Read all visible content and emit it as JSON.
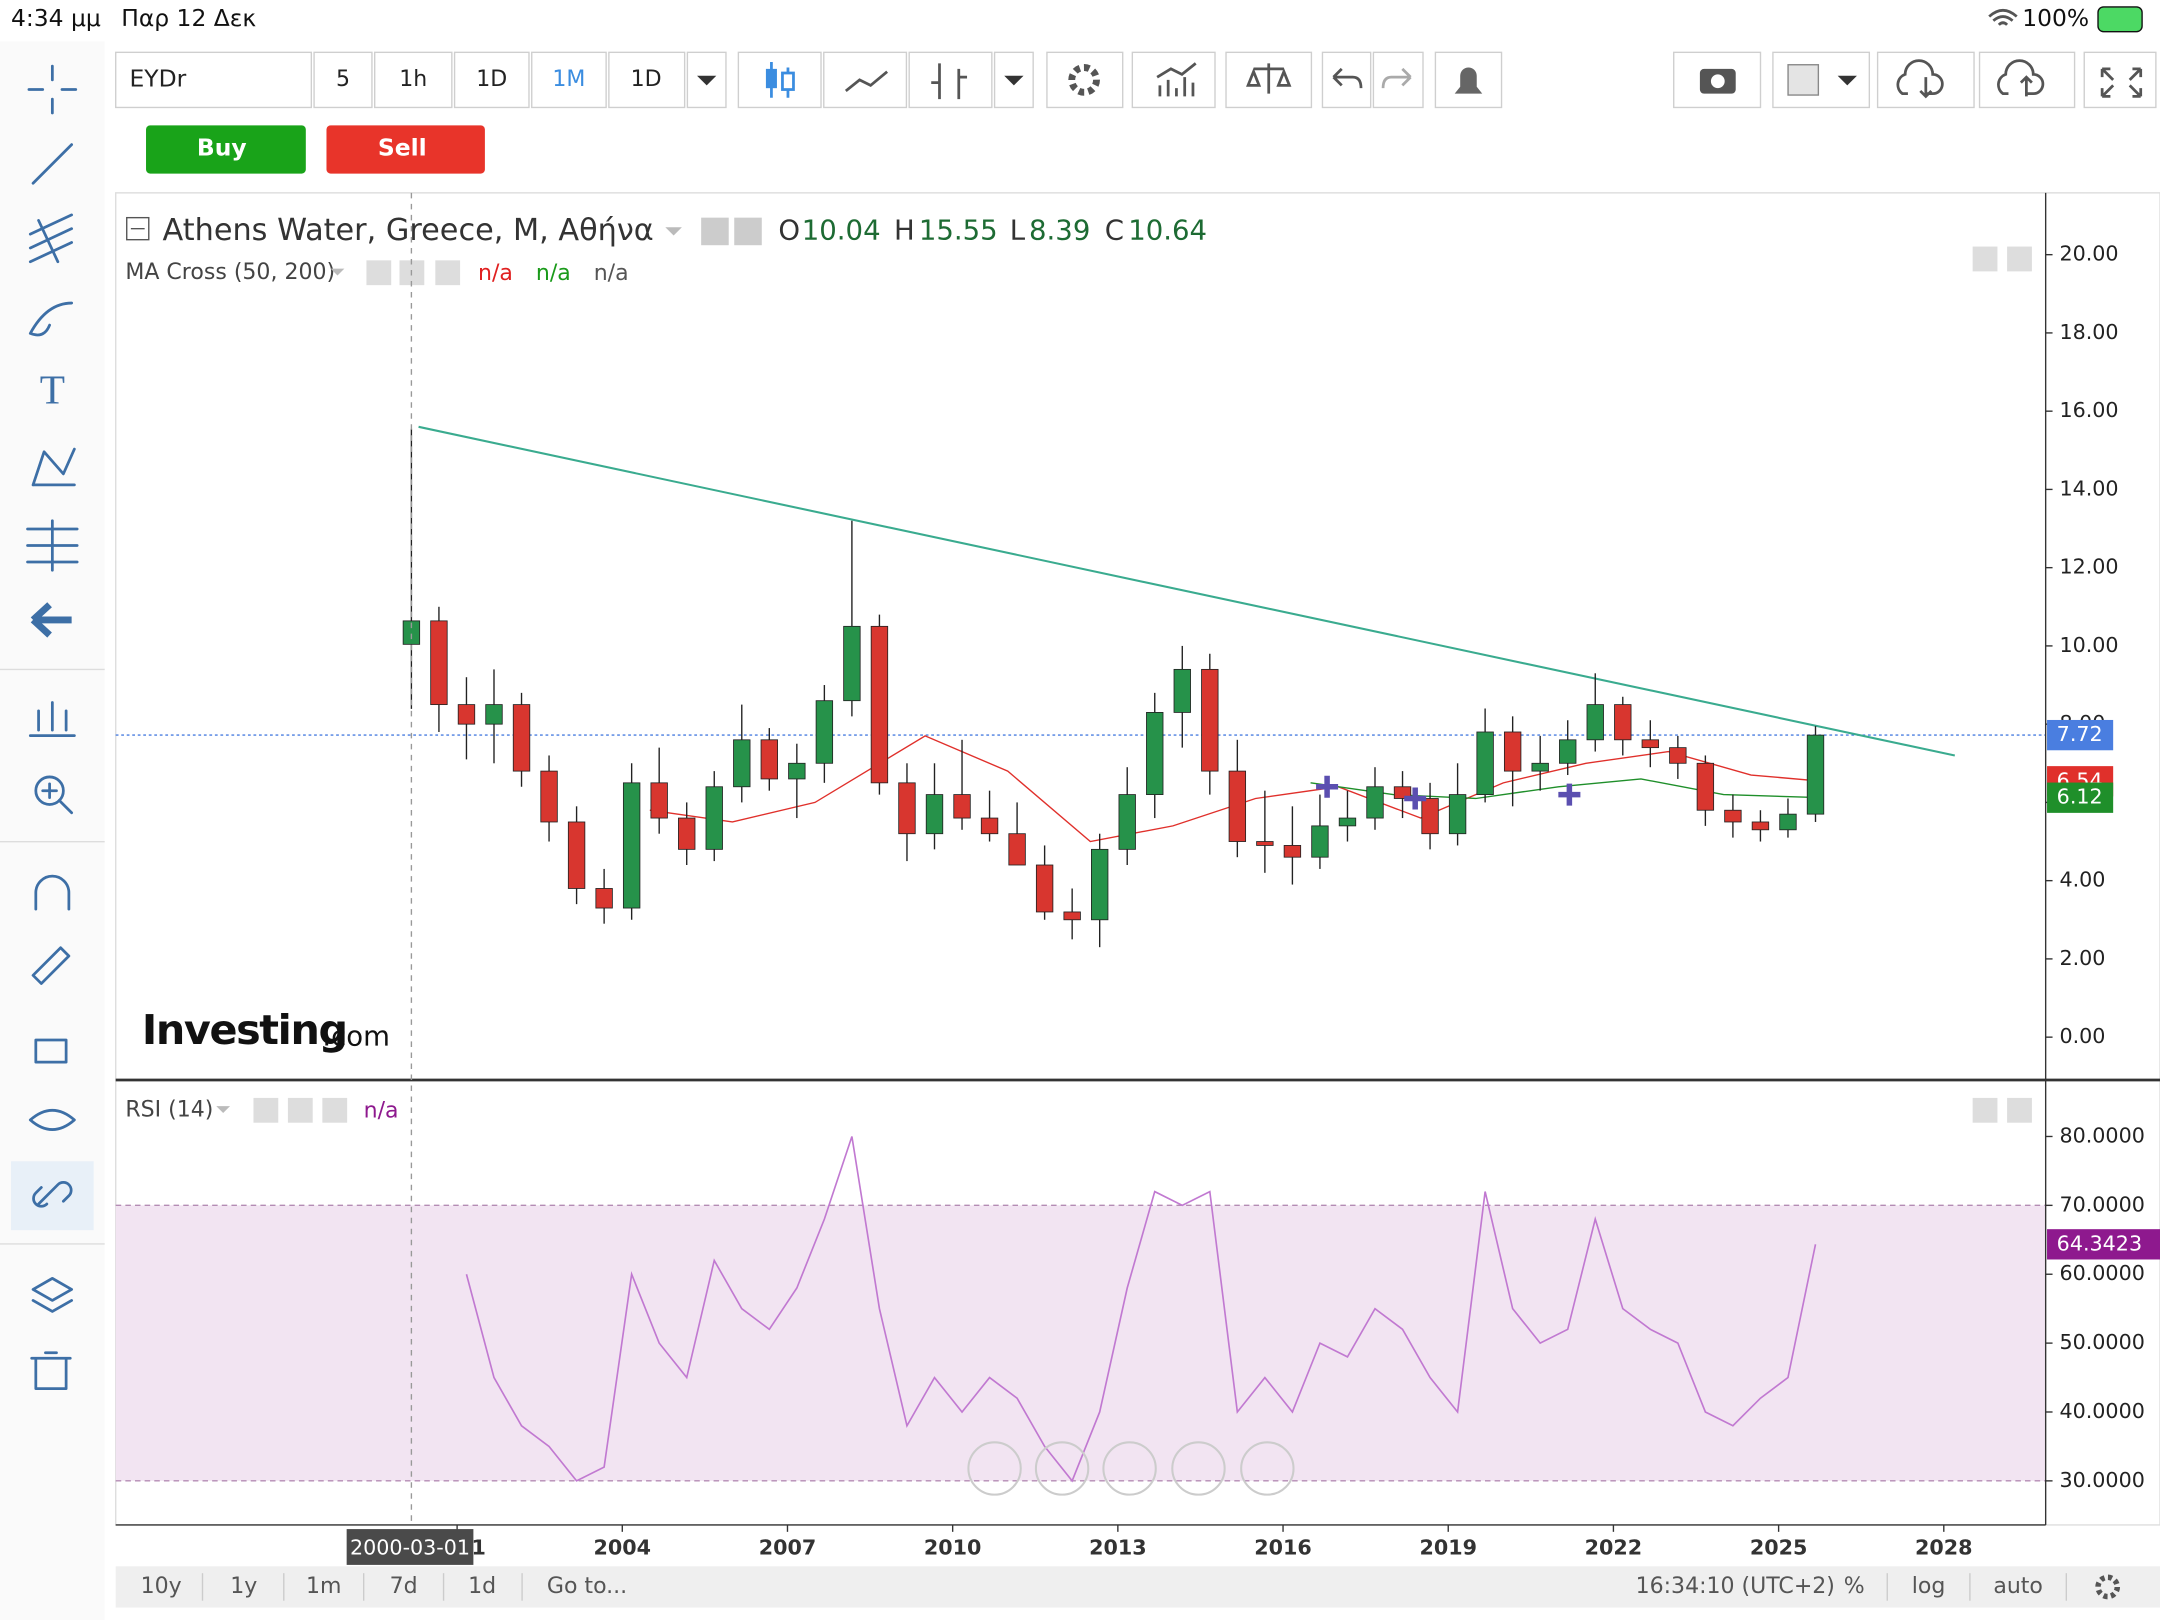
{
  "status_bar": {
    "time": "4:34 μμ",
    "date": "Παρ 12 Δεκ",
    "battery": "100%"
  },
  "toolbar": {
    "symbol": "EYDr",
    "intervals": [
      "5",
      "1h",
      "1D",
      "1M",
      "1D"
    ],
    "buy": "Buy",
    "sell": "Sell"
  },
  "chart_data": [
    {
      "type": "candlestick",
      "title": "Athens Water, Greece, M, Αθήνα",
      "legend_keys": [
        "O",
        "H",
        "L",
        "C"
      ],
      "x": [
        2000.17,
        2000.67,
        2001.17,
        2001.67,
        2002.17,
        2002.67,
        2003.17,
        2003.67,
        2004.17,
        2004.67,
        2005.17,
        2005.67,
        2006.17,
        2006.67,
        2007.17,
        2007.67,
        2008.17,
        2008.67,
        2009.17,
        2009.67,
        2010.17,
        2010.67,
        2011.17,
        2011.67,
        2012.17,
        2012.67,
        2013.17,
        2013.67,
        2014.17,
        2014.67,
        2015.17,
        2015.67,
        2016.17,
        2016.67,
        2017.17,
        2017.67,
        2018.17,
        2018.67,
        2019.17,
        2019.67,
        2020.17,
        2020.67,
        2021.17,
        2021.67,
        2022.17,
        2022.67,
        2023.17,
        2023.67,
        2024.17,
        2024.67,
        2025.17,
        2025.67
      ],
      "open": [
        10.04,
        10.64,
        8.5,
        8.0,
        8.5,
        6.8,
        5.5,
        3.8,
        3.3,
        6.5,
        5.6,
        4.8,
        6.4,
        7.6,
        6.6,
        7.0,
        8.6,
        10.5,
        6.5,
        5.2,
        6.2,
        5.6,
        5.2,
        4.4,
        3.2,
        3.0,
        4.8,
        6.2,
        8.3,
        9.4,
        6.8,
        5.0,
        4.9,
        4.6,
        5.4,
        5.6,
        6.4,
        6.1,
        5.2,
        6.2,
        7.8,
        6.8,
        7.0,
        7.6,
        8.5,
        7.6,
        7.4,
        7.0,
        5.8,
        5.5,
        5.3,
        5.7
      ],
      "high": [
        15.55,
        11.0,
        9.2,
        9.4,
        8.8,
        7.2,
        5.9,
        4.3,
        7.0,
        7.4,
        6.0,
        6.8,
        8.5,
        7.9,
        7.5,
        9.0,
        13.2,
        10.8,
        7.0,
        7.0,
        7.6,
        6.3,
        6.0,
        4.9,
        3.8,
        5.2,
        6.9,
        8.8,
        10.0,
        9.8,
        7.6,
        6.3,
        5.9,
        6.2,
        6.3,
        6.9,
        6.8,
        6.5,
        7.0,
        8.4,
        8.2,
        7.7,
        8.1,
        9.3,
        8.7,
        8.1,
        7.7,
        7.2,
        6.2,
        5.8,
        6.1,
        7.95
      ],
      "low": [
        8.39,
        7.8,
        7.1,
        7.0,
        6.4,
        5.0,
        3.4,
        2.9,
        3.0,
        5.2,
        4.4,
        4.5,
        6.0,
        6.3,
        5.6,
        6.5,
        8.2,
        6.2,
        4.5,
        4.8,
        5.3,
        5.0,
        4.4,
        3.0,
        2.5,
        2.3,
        4.4,
        5.6,
        7.4,
        6.2,
        4.6,
        4.2,
        3.9,
        4.3,
        5.0,
        5.3,
        5.6,
        4.8,
        4.9,
        6.0,
        5.9,
        6.3,
        6.7,
        7.3,
        7.2,
        6.9,
        6.6,
        5.4,
        5.1,
        5.0,
        5.1,
        5.5
      ],
      "close": [
        10.64,
        8.5,
        8.0,
        8.5,
        6.8,
        5.5,
        3.8,
        3.3,
        6.5,
        5.6,
        4.8,
        6.4,
        7.6,
        6.6,
        7.0,
        8.6,
        10.5,
        6.5,
        5.2,
        6.2,
        5.6,
        5.2,
        4.4,
        3.2,
        3.0,
        4.8,
        6.2,
        8.3,
        9.4,
        6.8,
        5.0,
        4.9,
        4.6,
        5.4,
        5.6,
        6.4,
        6.1,
        5.2,
        6.2,
        7.8,
        6.8,
        7.0,
        7.6,
        8.5,
        7.6,
        7.4,
        7.0,
        5.8,
        5.5,
        5.3,
        5.7,
        7.72
      ],
      "up_color": "#26924a",
      "down_color": "#d8362f",
      "last_price_color": "#4a7ee0",
      "xlim": [
        1994.8,
        2029.85
      ],
      "ylim": [
        -1.06,
        21.58
      ],
      "yticks": [
        {
          "value": 0,
          "label": "0.00"
        },
        {
          "value": 2,
          "label": "2.00"
        },
        {
          "value": 4,
          "label": "4.00"
        },
        {
          "value": 6,
          "label": "6.00"
        },
        {
          "value": 8,
          "label": "8.00"
        },
        {
          "value": 10,
          "label": "10.00"
        },
        {
          "value": 12,
          "label": "12.00"
        },
        {
          "value": 14,
          "label": "14.00"
        },
        {
          "value": 16,
          "label": "16.00"
        },
        {
          "value": 18,
          "label": "18.00"
        },
        {
          "value": 20,
          "label": "20.00"
        }
      ],
      "indicator": {
        "name": "MA Cross (50, 200)",
        "readouts": [
          "n/a",
          "n/a",
          "n/a"
        ],
        "readout_colors": [
          "#e02020",
          "#1a9a1a",
          "#555555"
        ],
        "series": [
          {
            "x": [
              2004.5,
              2006,
              2007.5,
              2009.5,
              2011,
              2012.5,
              2014,
              2015.5,
              2017,
              2018.5,
              2020,
              2021.5,
              2023,
              2024.5,
              2025.8
            ],
            "values": [
              5.8,
              5.5,
              6.0,
              7.7,
              6.8,
              5.0,
              5.4,
              6.1,
              6.4,
              5.6,
              6.5,
              7.0,
              7.3,
              6.7,
              6.54
            ],
            "color": "#e0302b"
          },
          {
            "x": [
              2016.5,
              2018,
              2019.5,
              2021,
              2022.5,
              2024,
              2025.8
            ],
            "values": [
              6.5,
              6.2,
              6.1,
              6.4,
              6.6,
              6.2,
              6.12
            ],
            "color": "#1f8f2a"
          }
        ],
        "signals": {
          "x": [
            2016.8,
            2018.4,
            2021.2
          ],
          "values": [
            6.4,
            6.1,
            6.2
          ],
          "color": "#5b4fb0"
        }
      },
      "trendline": {
        "x": [
          2000.3,
          2028.2
        ],
        "values": [
          15.6,
          7.2
        ],
        "color": "#3aab8f"
      },
      "watermark": [
        "Investing",
        ".com"
      ]
    },
    {
      "type": "line",
      "title": "RSI (14)",
      "readout": "n/a",
      "x": [
        2001.17,
        2001.67,
        2002.17,
        2002.67,
        2003.17,
        2003.67,
        2004.17,
        2004.67,
        2005.17,
        2005.67,
        2006.17,
        2006.67,
        2007.17,
        2007.67,
        2008.17,
        2008.67,
        2009.17,
        2009.67,
        2010.17,
        2010.67,
        2011.17,
        2011.67,
        2012.17,
        2012.67,
        2013.17,
        2013.67,
        2014.17,
        2014.67,
        2015.17,
        2015.67,
        2016.17,
        2016.67,
        2017.17,
        2017.67,
        2018.17,
        2018.67,
        2019.17,
        2019.67,
        2020.17,
        2020.67,
        2021.17,
        2021.67,
        2022.17,
        2022.67,
        2023.17,
        2023.67,
        2024.17,
        2024.67,
        2025.17,
        2025.67
      ],
      "values": [
        60,
        45,
        38,
        35,
        30,
        32,
        60,
        50,
        45,
        62,
        55,
        52,
        58,
        68,
        80,
        55,
        38,
        45,
        40,
        45,
        42,
        35,
        30,
        40,
        58,
        72,
        70,
        72,
        40,
        45,
        40,
        50,
        48,
        55,
        52,
        45,
        40,
        72,
        55,
        50,
        52,
        68,
        55,
        52,
        50,
        40,
        38,
        42,
        45,
        64.3423
      ],
      "color": "#c179d1",
      "last_color": "#8e198e",
      "band": [
        30,
        70
      ],
      "band_color": "#f2e4f2",
      "xlim": [
        1994.8,
        2029.85
      ],
      "ylim": [
        23.6,
        88
      ],
      "yticks": [
        {
          "value": 30,
          "label": "30.0000"
        },
        {
          "value": 40,
          "label": "40.0000"
        },
        {
          "value": 50,
          "label": "50.0000"
        },
        {
          "value": 60,
          "label": "60.0000"
        },
        {
          "value": 70,
          "label": "70.0000"
        },
        {
          "value": 80,
          "label": "80.0000"
        }
      ],
      "xticks": [
        2001,
        2004,
        2007,
        2010,
        2013,
        2016,
        2019,
        2022,
        2025,
        2028
      ],
      "crosshair": {
        "x": 2000.17,
        "label": "2000-03-01"
      }
    }
  ],
  "bottom_bar": {
    "ranges": [
      "10y",
      "1y",
      "1m",
      "7d",
      "1d"
    ],
    "goto": "Go to...",
    "clock": "16:34:10 (UTC+2)",
    "options": [
      "%",
      "log",
      "auto"
    ]
  }
}
